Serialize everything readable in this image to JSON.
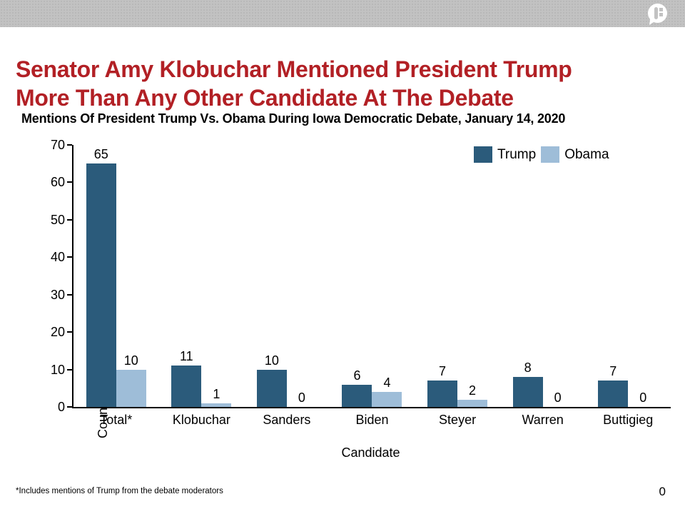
{
  "header": {
    "logo": "speech-bubble-f-logo"
  },
  "title_lines": [
    "Senator Amy Klobuchar Mentioned President Trump",
    "More Than Any Other Candidate At The Debate"
  ],
  "chart_data": {
    "type": "bar",
    "title": "Mentions Of President Trump Vs. Obama During Iowa Democratic Debate, January 14, 2020",
    "categories": [
      "Total*",
      "Klobuchar",
      "Sanders",
      "Biden",
      "Steyer",
      "Warren",
      "Buttigieg"
    ],
    "series": [
      {
        "name": "Trump",
        "color": "#2b5b7b",
        "values": [
          65,
          11,
          10,
          6,
          7,
          8,
          7
        ]
      },
      {
        "name": "Obama",
        "color": "#9ebdd8",
        "values": [
          10,
          1,
          0,
          4,
          2,
          0,
          0
        ]
      }
    ],
    "xlabel": "Candidate",
    "ylabel": "Count",
    "ylim": [
      0,
      70
    ],
    "ytick_step": 10,
    "grid": false,
    "legend_position": "top-right",
    "bar_value_labels": true
  },
  "footnote": "*Includes mentions of Trump from the debate moderators",
  "page_number": "0",
  "colors": {
    "title_red": "#b22025",
    "header_gray": "#c2c2c2",
    "trump_blue": "#2b5b7b",
    "obama_blue": "#9ebdd8"
  }
}
